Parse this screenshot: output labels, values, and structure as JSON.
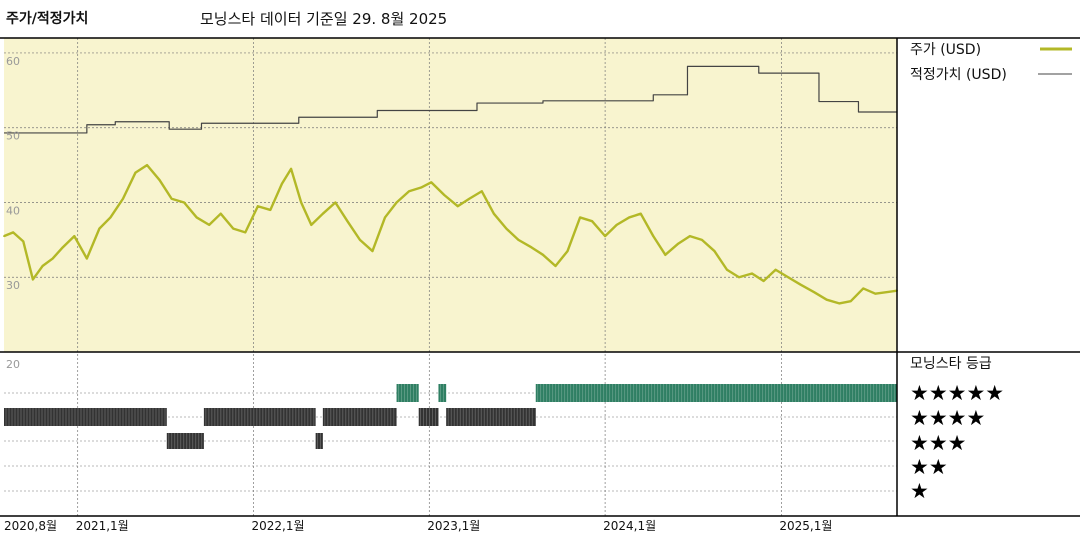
{
  "header": {
    "left_title": "주가/적정가치",
    "subtitle": "모닝스타 데이터 기준일 29. 8월 2025"
  },
  "legend": {
    "price_label": "주가 (USD)",
    "fair_value_label": "적정가치 (USD)"
  },
  "rating_panel": {
    "title": "모닝스타 등급",
    "levels": [
      "★★★★★",
      "★★★★",
      "★★★",
      "★★",
      "★"
    ]
  },
  "colors": {
    "price_line": "#b3b827",
    "fair_value_line": "#444444",
    "plot_background": "#f8f4cf",
    "rating_5_bar": "#2f7f63",
    "rating_4_bar": "#333333",
    "rating_3_bar": "#333333"
  },
  "chart_data": [
    {
      "type": "line",
      "title": "",
      "x_axis": {
        "type": "date",
        "range": [
          "2020-08-01",
          "2025-08-29"
        ],
        "ticks": [
          {
            "date": "2020-08-01",
            "label": "2020,8월"
          },
          {
            "date": "2021-01-01",
            "label": "2021,1월"
          },
          {
            "date": "2022-01-01",
            "label": "2022,1월"
          },
          {
            "date": "2023-01-01",
            "label": "2023,1월"
          },
          {
            "date": "2024-01-01",
            "label": "2024,1월"
          },
          {
            "date": "2025-01-01",
            "label": "2025,1월"
          }
        ]
      },
      "y_axis": {
        "range": [
          20,
          62
        ],
        "ticks": [
          20,
          30,
          40,
          50,
          60
        ]
      },
      "grid": true,
      "legend_position": "right",
      "series": [
        {
          "name": "주가 (USD)",
          "points": [
            [
              "2020-08-01",
              35.5
            ],
            [
              "2020-08-20",
              36.0
            ],
            [
              "2020-09-10",
              34.8
            ],
            [
              "2020-09-30",
              29.7
            ],
            [
              "2020-10-20",
              31.5
            ],
            [
              "2020-11-10",
              32.5
            ],
            [
              "2020-12-01",
              34.0
            ],
            [
              "2020-12-25",
              35.5
            ],
            [
              "2021-01-20",
              32.5
            ],
            [
              "2021-02-15",
              36.5
            ],
            [
              "2021-03-10",
              38.0
            ],
            [
              "2021-04-05",
              40.5
            ],
            [
              "2021-05-01",
              44.0
            ],
            [
              "2021-05-25",
              45.0
            ],
            [
              "2021-06-20",
              43.0
            ],
            [
              "2021-07-15",
              40.5
            ],
            [
              "2021-08-10",
              40.0
            ],
            [
              "2021-09-05",
              38.0
            ],
            [
              "2021-10-01",
              37.0
            ],
            [
              "2021-10-25",
              38.5
            ],
            [
              "2021-11-20",
              36.5
            ],
            [
              "2021-12-15",
              36.0
            ],
            [
              "2022-01-10",
              39.5
            ],
            [
              "2022-02-05",
              39.0
            ],
            [
              "2022-03-01",
              42.5
            ],
            [
              "2022-03-20",
              44.5
            ],
            [
              "2022-04-10",
              40.0
            ],
            [
              "2022-05-01",
              37.0
            ],
            [
              "2022-05-25",
              38.5
            ],
            [
              "2022-06-20",
              40.0
            ],
            [
              "2022-07-15",
              37.5
            ],
            [
              "2022-08-10",
              35.0
            ],
            [
              "2022-09-05",
              33.5
            ],
            [
              "2022-10-01",
              38.0
            ],
            [
              "2022-10-25",
              40.0
            ],
            [
              "2022-11-20",
              41.5
            ],
            [
              "2022-12-15",
              42.0
            ],
            [
              "2023-01-05",
              42.7
            ],
            [
              "2023-02-01",
              41.0
            ],
            [
              "2023-03-01",
              39.5
            ],
            [
              "2023-03-25",
              40.5
            ],
            [
              "2023-04-20",
              41.5
            ],
            [
              "2023-05-15",
              38.5
            ],
            [
              "2023-06-10",
              36.5
            ],
            [
              "2023-07-05",
              35.0
            ],
            [
              "2023-08-01",
              34.0
            ],
            [
              "2023-08-25",
              33.0
            ],
            [
              "2023-09-20",
              31.5
            ],
            [
              "2023-10-15",
              33.5
            ],
            [
              "2023-11-10",
              38.0
            ],
            [
              "2023-12-05",
              37.5
            ],
            [
              "2024-01-01",
              35.5
            ],
            [
              "2024-01-25",
              37.0
            ],
            [
              "2024-02-20",
              38.0
            ],
            [
              "2024-03-15",
              38.5
            ],
            [
              "2024-04-10",
              35.5
            ],
            [
              "2024-05-05",
              33.0
            ],
            [
              "2024-06-01",
              34.5
            ],
            [
              "2024-06-25",
              35.5
            ],
            [
              "2024-07-20",
              35.0
            ],
            [
              "2024-08-15",
              33.5
            ],
            [
              "2024-09-10",
              31.0
            ],
            [
              "2024-10-05",
              30.0
            ],
            [
              "2024-11-01",
              30.5
            ],
            [
              "2024-11-25",
              29.5
            ],
            [
              "2024-12-20",
              31.0
            ],
            [
              "2025-01-15",
              30.0
            ],
            [
              "2025-02-10",
              29.0
            ],
            [
              "2025-03-10",
              28.0
            ],
            [
              "2025-04-05",
              27.0
            ],
            [
              "2025-05-01",
              26.5
            ],
            [
              "2025-05-25",
              26.8
            ],
            [
              "2025-06-20",
              28.5
            ],
            [
              "2025-07-15",
              27.8
            ],
            [
              "2025-08-29",
              28.2
            ]
          ]
        },
        {
          "name": "적정가치 (USD)",
          "step": true,
          "points": [
            [
              "2020-08-01",
              49.3
            ],
            [
              "2021-01-20",
              50.4
            ],
            [
              "2021-03-20",
              50.8
            ],
            [
              "2021-07-10",
              49.8
            ],
            [
              "2021-09-15",
              50.6
            ],
            [
              "2022-04-05",
              51.4
            ],
            [
              "2022-09-15",
              52.3
            ],
            [
              "2023-04-10",
              53.3
            ],
            [
              "2023-08-25",
              53.6
            ],
            [
              "2024-04-10",
              54.4
            ],
            [
              "2024-06-20",
              58.2
            ],
            [
              "2024-11-15",
              57.3
            ],
            [
              "2025-03-20",
              53.5
            ],
            [
              "2025-06-10",
              52.1
            ],
            [
              "2025-08-29",
              52.1
            ]
          ]
        }
      ]
    },
    {
      "type": "rating-timeline",
      "title": "모닝스타 등급",
      "ratings": [
        {
          "stars": 4,
          "start": "2020-08-01",
          "end": "2021-07-05"
        },
        {
          "stars": 3,
          "start": "2021-07-05",
          "end": "2021-09-20"
        },
        {
          "stars": 4,
          "start": "2021-09-20",
          "end": "2022-05-10"
        },
        {
          "stars": 3,
          "start": "2022-05-10",
          "end": "2022-05-25"
        },
        {
          "stars": 4,
          "start": "2022-05-25",
          "end": "2022-10-25"
        },
        {
          "stars": 5,
          "start": "2022-10-25",
          "end": "2022-12-10"
        },
        {
          "stars": 4,
          "start": "2022-12-10",
          "end": "2023-01-20"
        },
        {
          "stars": 5,
          "start": "2023-01-20",
          "end": "2023-02-05"
        },
        {
          "stars": 4,
          "start": "2023-02-05",
          "end": "2023-08-10"
        },
        {
          "stars": 5,
          "start": "2023-08-10",
          "end": "2025-08-29"
        }
      ]
    }
  ]
}
